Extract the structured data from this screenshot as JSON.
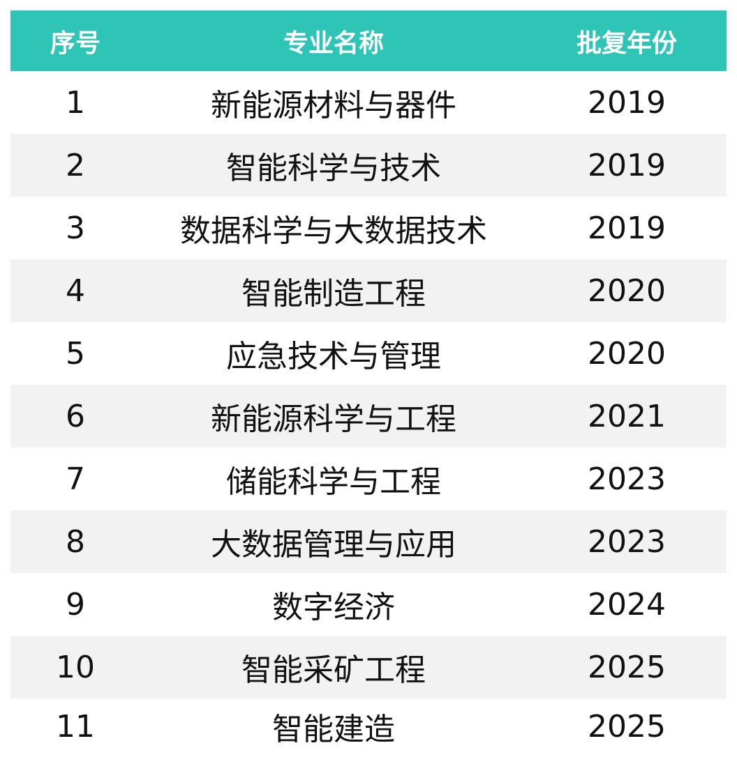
{
  "table": {
    "headers": {
      "index": "序号",
      "name": "专业名称",
      "year": "批复年份"
    },
    "rows": [
      {
        "index": "1",
        "name": "新能源材料与器件",
        "year": "2019"
      },
      {
        "index": "2",
        "name": "智能科学与技术",
        "year": "2019"
      },
      {
        "index": "3",
        "name": "数据科学与大数据技术",
        "year": "2019"
      },
      {
        "index": "4",
        "name": "智能制造工程",
        "year": "2020"
      },
      {
        "index": "5",
        "name": "应急技术与管理",
        "year": "2020"
      },
      {
        "index": "6",
        "name": "新能源科学与工程",
        "year": "2021"
      },
      {
        "index": "7",
        "name": "储能科学与工程",
        "year": "2023"
      },
      {
        "index": "8",
        "name": "大数据管理与应用",
        "year": "2023"
      },
      {
        "index": "9",
        "name": "数字经济",
        "year": "2024"
      },
      {
        "index": "10",
        "name": "智能采矿工程",
        "year": "2025"
      },
      {
        "index": "11",
        "name": "智能建造",
        "year": "2025"
      }
    ]
  },
  "colors": {
    "header_bg": "#2ec4b6",
    "header_text": "#ffffff",
    "alt_row_bg": "#f2f2f2",
    "body_text": "#111111"
  }
}
